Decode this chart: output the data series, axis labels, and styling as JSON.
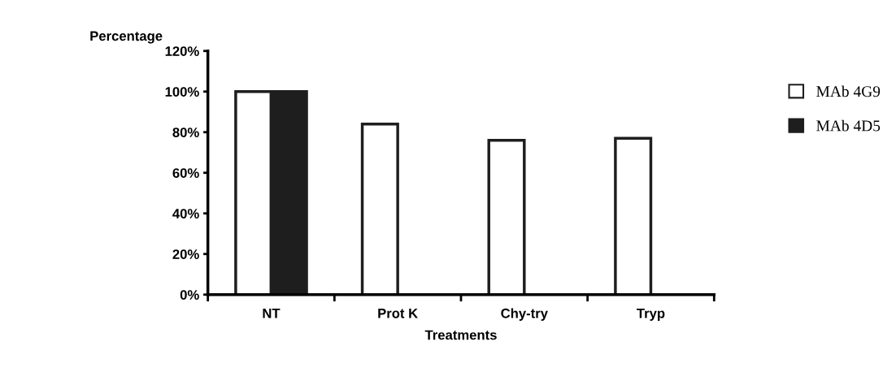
{
  "chart_data": {
    "type": "bar",
    "xlabel": "Treatments",
    "ylabel": "Percentage",
    "categories": [
      "NT",
      "Prot K",
      "Chy-try",
      "Tryp"
    ],
    "series": [
      {
        "name": "MAb 4G9",
        "color": "#ffffff",
        "values": [
          100,
          84,
          76,
          77
        ]
      },
      {
        "name": "MAb 4D5",
        "color": "#1e1e1e",
        "values": [
          100,
          0,
          0,
          0
        ]
      }
    ],
    "ylim": [
      0,
      120
    ],
    "yticks": [
      {
        "value": 0,
        "label": "0%"
      },
      {
        "value": 20,
        "label": "20%"
      },
      {
        "value": 40,
        "label": "40%"
      },
      {
        "value": 60,
        "label": "60%"
      },
      {
        "value": 80,
        "label": "80%"
      },
      {
        "value": 100,
        "label": "100%"
      },
      {
        "value": 120,
        "label": "120%"
      }
    ],
    "grid": false,
    "legend": "right"
  }
}
